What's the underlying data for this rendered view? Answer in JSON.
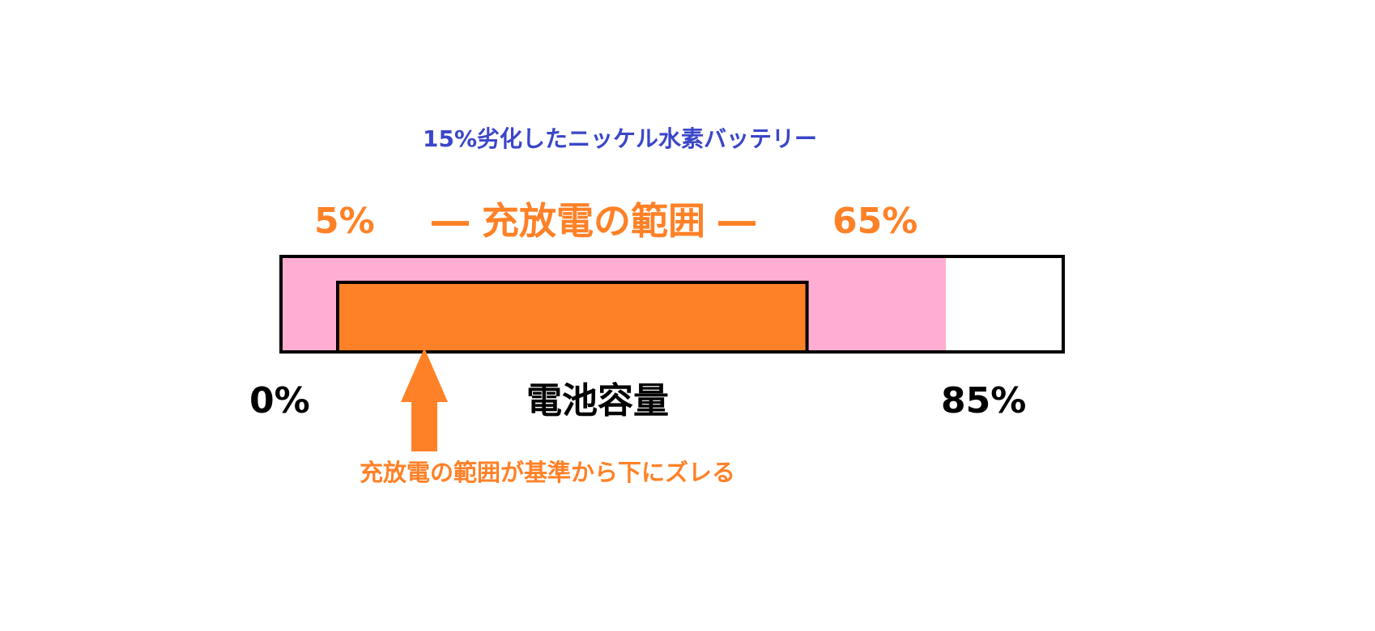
{
  "title": "15%劣化したニッケル水素バッテリー",
  "range_label": "― 充放電の範囲 ―",
  "range_low_label": "5%",
  "range_high_label": "65%",
  "axis_label": "電池容量",
  "axis_min_label": "0%",
  "axis_max_label": "85%",
  "note": "充放電の範囲が基準から下にズレる",
  "values": {
    "usable_capacity": 85,
    "range_low": 5,
    "range_high": 65,
    "full_scale": 100
  },
  "colors": {
    "title": "#3a46c8",
    "accent": "#ff8127",
    "usable_fill": "#ffadd0",
    "unusable_fill": "#ffffff",
    "outline": "#000000",
    "axis_text": "#000000"
  }
}
